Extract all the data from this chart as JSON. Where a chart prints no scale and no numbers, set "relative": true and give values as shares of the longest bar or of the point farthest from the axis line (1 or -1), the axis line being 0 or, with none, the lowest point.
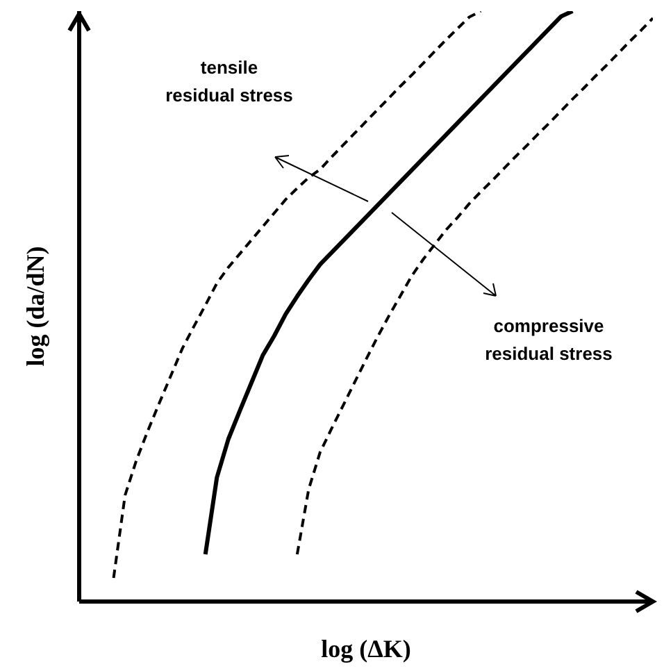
{
  "chart_data": {
    "type": "line",
    "relative": true,
    "xlabel": "log (ΔK)",
    "ylabel": "log (da/dN)",
    "annotations": [
      "tensile\nresidual stress",
      "compressive\nresidual stress"
    ],
    "grid": false,
    "legend": false,
    "marker": "none",
    "categories": [
      null,
      null,
      null,
      null,
      null,
      null,
      null,
      null,
      null,
      null,
      null,
      null,
      null,
      null,
      null,
      null,
      null,
      null,
      null,
      null,
      null,
      null,
      null,
      null,
      null,
      null,
      null,
      null,
      null,
      null,
      null,
      null,
      null,
      null,
      null,
      null,
      null,
      null,
      null,
      null,
      null,
      null,
      null,
      null,
      null,
      null,
      null,
      null,
      null,
      null
    ],
    "series": [
      {
        "color": "#000000",
        "line_style": "dashed",
        "values": [
          null,
          null,
          0.04,
          0.18,
          0.24,
          0.29,
          0.337,
          0.383,
          0.429,
          0.466,
          0.502,
          0.539,
          0.566,
          0.589,
          0.612,
          0.635,
          0.658,
          0.681,
          0.7,
          0.718,
          0.732,
          0.753,
          0.773,
          0.793,
          0.813,
          0.833,
          0.853,
          0.873,
          0.892,
          0.912,
          0.932,
          0.952,
          0.971,
          0.99,
          1,
          null,
          null,
          null,
          null,
          null,
          null,
          null,
          null,
          null,
          null,
          null,
          null,
          null,
          null,
          null
        ]
      },
      {
        "color": "#000000",
        "line_style": "solid",
        "values": [
          null,
          null,
          null,
          null,
          null,
          null,
          null,
          null,
          null,
          null,
          0.08,
          0.21,
          0.275,
          0.323,
          0.37,
          0.417,
          0.45,
          0.487,
          0.517,
          0.545,
          0.571,
          0.591,
          0.611,
          0.631,
          0.651,
          0.671,
          0.691,
          0.711,
          0.731,
          0.751,
          0.771,
          0.791,
          0.811,
          0.831,
          0.851,
          0.871,
          0.891,
          0.911,
          0.931,
          0.951,
          0.971,
          0.991,
          1,
          null,
          null,
          null,
          null,
          null,
          null,
          null
        ]
      },
      {
        "color": "#000000",
        "line_style": "dashed",
        "values": [
          null,
          null,
          null,
          null,
          null,
          null,
          null,
          null,
          null,
          null,
          null,
          null,
          null,
          null,
          null,
          null,
          null,
          null,
          0.08,
          0.19,
          0.253,
          0.293,
          0.332,
          0.371,
          0.41,
          0.448,
          0.484,
          0.518,
          0.552,
          0.58,
          0.605,
          0.63,
          0.651,
          0.674,
          0.694,
          0.713,
          0.733,
          0.753,
          0.772,
          0.792,
          0.811,
          0.831,
          0.851,
          0.87,
          0.89,
          0.909,
          0.929,
          0.949,
          0.968,
          0.988
        ]
      }
    ]
  }
}
